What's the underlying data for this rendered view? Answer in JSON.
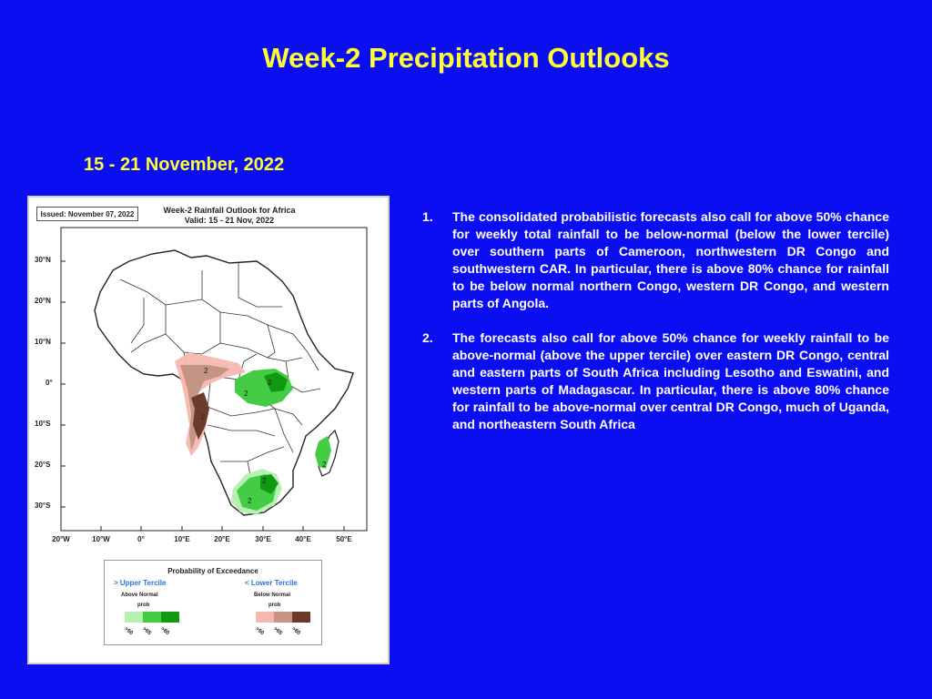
{
  "slide": {
    "title": "Week-2 Precipitation Outlooks",
    "date_range": "15 - 21 November, 2022"
  },
  "map": {
    "issued": "Issued: November 07, 2022",
    "title_line1": "Week-2 Rainfall Outlook for Africa",
    "title_line2": "Valid: 15 - 21 Nov, 2022",
    "lat_labels": [
      "30°N",
      "20°N",
      "10°N",
      "0°",
      "10°S",
      "20°S",
      "30°S"
    ],
    "lon_labels": [
      "20°W",
      "10°W",
      "0°",
      "10°E",
      "20°E",
      "30°E",
      "40°E",
      "50°E"
    ],
    "contour_labels": [
      "2",
      "2",
      "2",
      "1",
      "2",
      "2",
      "2"
    ],
    "colors": {
      "land": "#ffffff",
      "border": "#333333",
      "above_50": "#b8f0b0",
      "above_65": "#44cc44",
      "above_80": "#119911",
      "below_50": "#f5b8b0",
      "below_65": "#c49484",
      "below_80": "#6b3a2c"
    }
  },
  "legend": {
    "title": "Probability of Exceedance",
    "upper_label": "> Upper Tercile",
    "lower_label": "< Lower Tercile",
    "above_label": "Above Normal",
    "below_label": "Below Normal",
    "prob_label": "prob",
    "thresholds": [
      ">50",
      ">65",
      ">80"
    ]
  },
  "notes": [
    {
      "number": "1.",
      "text": "The consolidated probabilistic forecasts also call for above 50% chance for weekly total rainfall to be below-normal (below the lower tercile) over southern parts of Cameroon, northwestern DR Congo and southwestern CAR. In particular, there is above 80% chance for rainfall to be below normal northern Congo, western DR Congo, and western parts of Angola."
    },
    {
      "number": "2.",
      "text": "The forecasts also call for above 50% chance for weekly rainfall to be above-normal (above the upper tercile) over eastern DR Congo, central and eastern parts of South Africa including Lesotho and Eswatini, and western parts of Madagascar. In particular, there is above 80% chance for rainfall to be above-normal over central DR Congo, much of Uganda, and northeastern South Africa"
    }
  ]
}
